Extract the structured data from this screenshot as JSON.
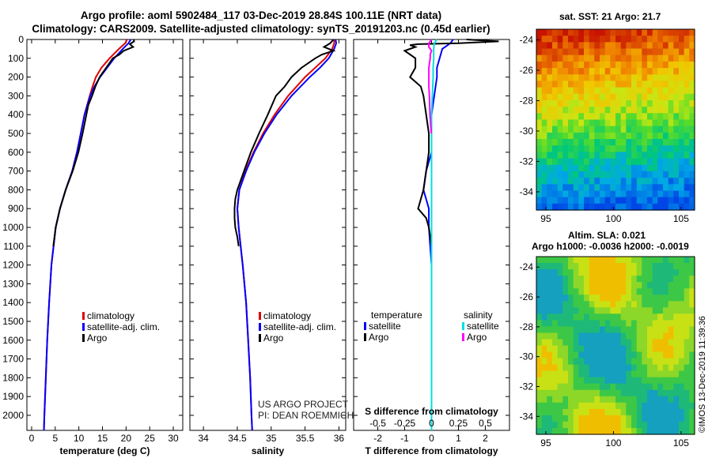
{
  "header": {
    "title_line1": "Argo profile: aoml 5902484_117 03-Dec-2019 28.84S 100.11E (NRT data)",
    "title_line2": "Climatology: CARS2009. Satellite-adjusted climatology: synTS_20191203.nc (0.45d earlier)"
  },
  "colors": {
    "climatology": "#e00000",
    "satellite": "#0000ff",
    "argo": "#000000",
    "sat_salinity": "#00e0e0",
    "argo_salinity": "#ff00ff"
  },
  "credits": {
    "project": "US ARGO PROJECT",
    "pi": "PI: DEAN ROEMMICH",
    "stamp": "©IMOS 13-Dec-2019 11:39:36"
  },
  "chart_data": [
    {
      "type": "line",
      "id": "temperature",
      "xlabel": "temperature (deg C)",
      "xlim": [
        -1,
        32
      ],
      "ylim": [
        0,
        2080
      ],
      "xticks": [
        0,
        5,
        10,
        15,
        20,
        25,
        30
      ],
      "yticks": [
        0,
        100,
        200,
        300,
        400,
        500,
        600,
        700,
        800,
        900,
        1000,
        1100,
        1200,
        1300,
        1400,
        1500,
        1600,
        1700,
        1800,
        1900,
        2000
      ],
      "legend": [
        "climatology",
        "satellite-adj. clim.",
        "Argo"
      ],
      "series": [
        {
          "name": "climatology",
          "color": "red",
          "depth": [
            0,
            20,
            50,
            100,
            150,
            200,
            250,
            300,
            400,
            500,
            600,
            700,
            800,
            900,
            1000,
            1200,
            1400,
            1600,
            1800,
            2000,
            2080
          ],
          "values": [
            20.2,
            19.8,
            18.5,
            16.5,
            14.8,
            13.6,
            12.9,
            12.3,
            11.2,
            10.4,
            9.6,
            8.6,
            7.2,
            6.0,
            5.1,
            4.2,
            3.7,
            3.3,
            3.0,
            2.7,
            2.6
          ]
        },
        {
          "name": "satellite-adj. clim.",
          "color": "blue",
          "depth": [
            0,
            20,
            50,
            100,
            150,
            200,
            250,
            300,
            400,
            500,
            600,
            700,
            800,
            900,
            1000,
            1200,
            1400,
            1600,
            1800,
            2000,
            2080
          ],
          "values": [
            21.0,
            20.5,
            19.3,
            17.5,
            16.0,
            14.5,
            13.3,
            12.4,
            11.2,
            10.4,
            9.6,
            8.6,
            7.2,
            6.0,
            5.1,
            4.2,
            3.7,
            3.3,
            3.0,
            2.7,
            2.6
          ]
        },
        {
          "name": "Argo",
          "color": "black",
          "depth": [
            0,
            10,
            25,
            40,
            60,
            80,
            100,
            150,
            200,
            250,
            300,
            350,
            400,
            500,
            600,
            700,
            800,
            900,
            1000,
            1100
          ],
          "values": [
            21.6,
            21.7,
            20.8,
            21.5,
            19.5,
            18.6,
            17.2,
            15.8,
            14.4,
            13.5,
            12.8,
            12.0,
            11.6,
            10.8,
            9.9,
            8.7,
            7.2,
            6.0,
            5.1,
            4.6
          ]
        }
      ]
    },
    {
      "type": "line",
      "id": "salinity",
      "xlabel": "salinity",
      "xlim": [
        33.8,
        36.1
      ],
      "ylim": [
        0,
        2080
      ],
      "xticks": [
        34,
        34.5,
        35,
        35.5,
        36
      ],
      "legend": [
        "climatology",
        "satellite-adj. clim.",
        "Argo"
      ],
      "series": [
        {
          "name": "climatology",
          "color": "red",
          "depth": [
            0,
            20,
            50,
            100,
            150,
            200,
            300,
            400,
            500,
            600,
            700,
            800,
            900,
            1000,
            1100,
            1200,
            1400,
            1600,
            1800,
            2000,
            2080
          ],
          "values": [
            35.93,
            35.93,
            35.9,
            35.8,
            35.65,
            35.5,
            35.25,
            35.05,
            34.88,
            34.74,
            34.62,
            34.53,
            34.5,
            34.52,
            34.55,
            34.58,
            34.63,
            34.66,
            34.69,
            34.71,
            34.72
          ]
        },
        {
          "name": "satellite-adj. clim.",
          "color": "blue",
          "depth": [
            0,
            20,
            50,
            100,
            150,
            200,
            300,
            400,
            500,
            600,
            700,
            800,
            900,
            1000,
            1100,
            1200,
            1400,
            1600,
            1800,
            2000,
            2080
          ],
          "values": [
            35.95,
            35.96,
            35.93,
            35.85,
            35.72,
            35.57,
            35.3,
            35.08,
            34.9,
            34.75,
            34.63,
            34.53,
            34.5,
            34.52,
            34.55,
            34.58,
            34.63,
            34.66,
            34.69,
            34.71,
            34.72
          ]
        },
        {
          "name": "Argo",
          "color": "black",
          "depth": [
            0,
            20,
            40,
            60,
            80,
            100,
            150,
            200,
            250,
            300,
            400,
            500,
            600,
            700,
            800,
            850,
            900,
            950,
            1000,
            1050,
            1100
          ],
          "values": [
            35.92,
            35.87,
            35.78,
            35.92,
            35.75,
            35.65,
            35.45,
            35.3,
            35.2,
            35.07,
            34.95,
            34.82,
            34.7,
            34.6,
            34.5,
            34.47,
            34.46,
            34.46,
            34.47,
            34.5,
            34.52
          ]
        }
      ]
    },
    {
      "type": "line",
      "id": "difference",
      "xlabel": "T difference from climatology",
      "xlabel_top": "S difference from climatology",
      "xlim": [
        -2.9,
        2.9
      ],
      "ylim": [
        0,
        2080
      ],
      "xticks": [
        -2,
        -1,
        0,
        1,
        2
      ],
      "xticks_salinity": [
        -0.5,
        -0.25,
        0,
        0.25,
        0.5
      ],
      "legend_temperature_title": "temperature",
      "legend_salinity_title": "salinity",
      "legend_temperature": [
        "satellite",
        "Argo"
      ],
      "legend_salinity": [
        "satellite",
        "Argo"
      ],
      "series": [
        {
          "name": "temperature satellite",
          "color": "blue",
          "depth": [
            0,
            20,
            50,
            100,
            150,
            200,
            300,
            400,
            500,
            600,
            700,
            800,
            900,
            1000,
            1200,
            1500,
            2000,
            2080
          ],
          "values": [
            0.8,
            0.7,
            0.4,
            0.3,
            0.2,
            0.2,
            0.1,
            0.0,
            0.0,
            0.0,
            -0.2,
            -0.3,
            -0.1,
            -0.1,
            0.0,
            0.0,
            0.0,
            0.0
          ]
        },
        {
          "name": "temperature Argo",
          "color": "black",
          "depth": [
            0,
            10,
            20,
            25,
            30,
            40,
            60,
            80,
            100,
            150,
            200,
            250,
            300,
            400,
            500,
            600,
            700,
            800,
            850,
            900,
            950,
            1000,
            1100
          ],
          "values": [
            1.3,
            2.5,
            1.0,
            -0.5,
            -0.8,
            -0.6,
            -1.0,
            -0.8,
            -0.6,
            -0.6,
            -0.8,
            -0.4,
            -0.3,
            -0.2,
            -0.1,
            -0.1,
            -0.2,
            -0.3,
            -0.4,
            -0.5,
            -0.2,
            -0.1,
            0.0
          ]
        },
        {
          "name": "salinity satellite",
          "color": "cyan",
          "depth": [
            0,
            20,
            50,
            100,
            150,
            200,
            300,
            400,
            500,
            600,
            800,
            1000,
            1200,
            1500,
            2000,
            2080
          ],
          "values": [
            0.2,
            0.1,
            0.08,
            0.08,
            0.06,
            0.06,
            0.03,
            0.0,
            0.0,
            0.0,
            0.0,
            0.0,
            0.0,
            0.0,
            0.0,
            0.0
          ]
        },
        {
          "name": "salinity Argo",
          "color": "magenta",
          "depth": [
            0,
            20,
            40,
            60,
            80,
            100,
            150,
            200,
            250,
            300,
            400,
            500
          ],
          "values": [
            0.0,
            -0.1,
            -0.1,
            0.0,
            -0.05,
            -0.05,
            -0.1,
            -0.1,
            -0.1,
            -0.08,
            -0.06,
            -0.01
          ]
        }
      ]
    },
    {
      "type": "heatmap",
      "id": "sst_map",
      "title": "sat. SST: 21 Argo: 21.7",
      "xlim": [
        94.3,
        106
      ],
      "ylim": [
        -35.2,
        -23.3
      ],
      "xticks": [
        95,
        100,
        105
      ],
      "yticks": [
        -24,
        -26,
        -28,
        -30,
        -32,
        -34
      ]
    },
    {
      "type": "heatmap",
      "id": "sla_map",
      "title_line1": "Altim. SLA: 0.021",
      "title_line2": "Argo h1000: -0.0036 h2000: -0.0019",
      "xlim": [
        94.3,
        106
      ],
      "ylim": [
        -35.2,
        -23.3
      ],
      "xticks": [
        95,
        100,
        105
      ],
      "yticks": [
        -24,
        -26,
        -28,
        -30,
        -32,
        -34
      ]
    }
  ]
}
